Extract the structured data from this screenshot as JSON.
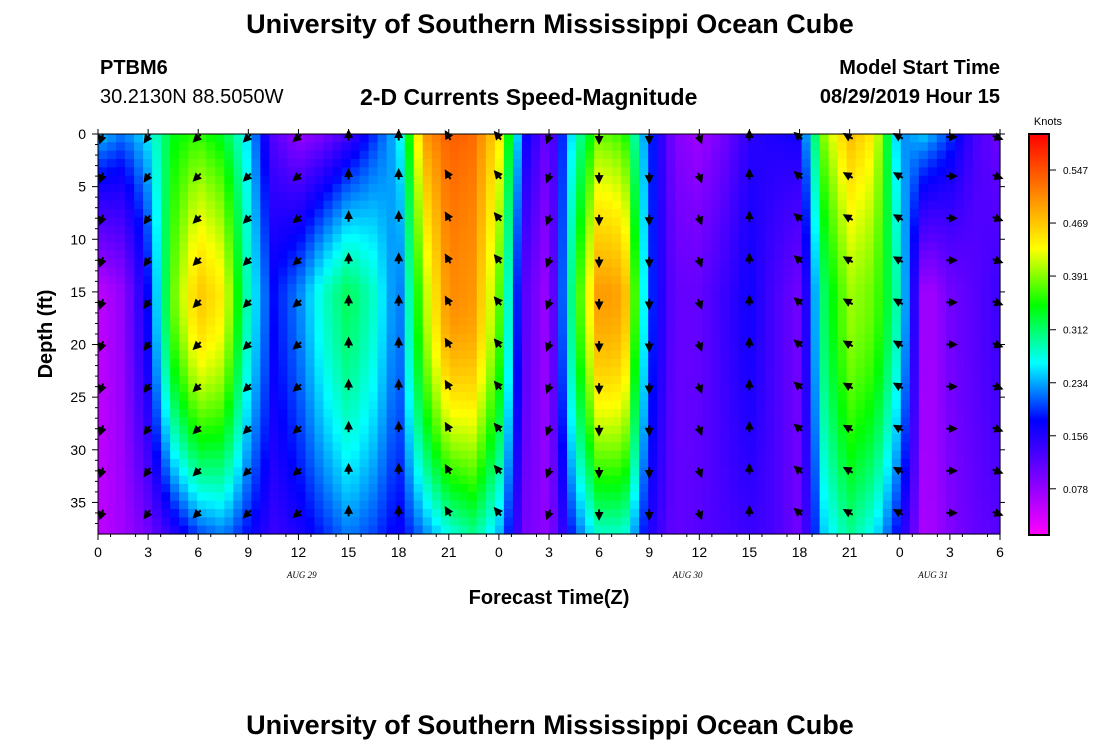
{
  "header": {
    "title": "University of Southern Mississippi Ocean Cube",
    "station": "PTBM6",
    "coords": "30.2130N 88.5050W",
    "subtitle": "2-D Currents Speed-Magnitude",
    "start_label": "Model Start Time",
    "start_value": "08/29/2019 Hour 15"
  },
  "footer": {
    "title": "University of Southern Mississippi Ocean Cube"
  },
  "chart_data": {
    "type": "heatmap",
    "title": "2-D Currents Speed-Magnitude",
    "xlabel": "Forecast Time(Z)",
    "ylabel": "Depth (ft)",
    "x_ticks": [
      "0",
      "3",
      "6",
      "9",
      "12",
      "15",
      "18",
      "21",
      "0",
      "3",
      "6",
      "9",
      "12",
      "15",
      "18",
      "21",
      "0",
      "3",
      "6"
    ],
    "date_labels": [
      {
        "text": "AUG 29",
        "tick_index": 12.2
      },
      {
        "text": "AUG 30",
        "tick_index": 35.3
      },
      {
        "text": "AUG 31",
        "tick_index": 50
      }
    ],
    "y_ticks": [
      0,
      5,
      10,
      15,
      20,
      25,
      30,
      35
    ],
    "ylim": [
      0,
      38
    ],
    "forecast_hours": [
      0,
      54
    ],
    "colorbar": {
      "label": "Knots",
      "ticks": [
        "0.547",
        "0.469",
        "0.391",
        "0.312",
        "0.234",
        "0.156",
        "0.078"
      ],
      "tick_values": [
        0.547,
        0.469,
        0.391,
        0.312,
        0.234,
        0.156,
        0.078
      ],
      "range": [
        0.01,
        0.6
      ],
      "colors": [
        "#ff00ff",
        "#7b00ff",
        "#0000ff",
        "#00ffff",
        "#00ff00",
        "#ffff00",
        "#ff8000",
        "#ff0000"
      ]
    },
    "speed_profiles": {
      "hours": [
        0,
        1.5,
        3,
        4.5,
        6,
        7.5,
        9,
        10.5,
        12,
        13.5,
        15,
        16.5,
        18,
        19.5,
        21,
        22.5,
        24,
        25.5,
        27,
        28.5,
        30,
        31.5,
        33,
        34.5,
        36,
        37.5,
        39,
        40.5,
        42,
        43.5,
        45,
        46.5,
        48,
        49.5,
        51,
        52.5,
        54
      ],
      "surface": [
        0.25,
        0.22,
        0.26,
        0.34,
        0.36,
        0.33,
        0.25,
        0.12,
        0.07,
        0.09,
        0.13,
        0.19,
        0.25,
        0.5,
        0.54,
        0.53,
        0.45,
        0.18,
        0.1,
        0.27,
        0.38,
        0.36,
        0.2,
        0.09,
        0.07,
        0.1,
        0.15,
        0.16,
        0.17,
        0.4,
        0.48,
        0.44,
        0.22,
        0.25,
        0.2,
        0.13,
        0.1
      ],
      "mid": [
        0.05,
        0.08,
        0.18,
        0.38,
        0.47,
        0.44,
        0.28,
        0.18,
        0.22,
        0.28,
        0.32,
        0.28,
        0.21,
        0.4,
        0.51,
        0.5,
        0.38,
        0.12,
        0.07,
        0.33,
        0.5,
        0.49,
        0.2,
        0.11,
        0.11,
        0.14,
        0.17,
        0.13,
        0.1,
        0.32,
        0.4,
        0.38,
        0.28,
        0.06,
        0.1,
        0.12,
        0.14
      ],
      "bottom": [
        0.05,
        0.07,
        0.1,
        0.15,
        0.2,
        0.22,
        0.18,
        0.14,
        0.16,
        0.19,
        0.22,
        0.2,
        0.17,
        0.22,
        0.27,
        0.3,
        0.24,
        0.1,
        0.08,
        0.2,
        0.28,
        0.28,
        0.16,
        0.11,
        0.12,
        0.13,
        0.14,
        0.13,
        0.1,
        0.25,
        0.3,
        0.26,
        0.17,
        0.06,
        0.09,
        0.11,
        0.12
      ]
    },
    "vectors": {
      "columns_hours": [
        0,
        3,
        6,
        9,
        12,
        15,
        18,
        21,
        24,
        27,
        30,
        33,
        36,
        39,
        42,
        45,
        48,
        51,
        54
      ],
      "rows_depth_ft": [
        0,
        4,
        8,
        12,
        16,
        20,
        24,
        28,
        32,
        36
      ],
      "direction_by_column_deg": [
        200,
        215,
        225,
        225,
        230,
        0,
        0,
        330,
        320,
        200,
        180,
        180,
        160,
        0,
        310,
        300,
        300,
        90,
        110
      ]
    }
  }
}
